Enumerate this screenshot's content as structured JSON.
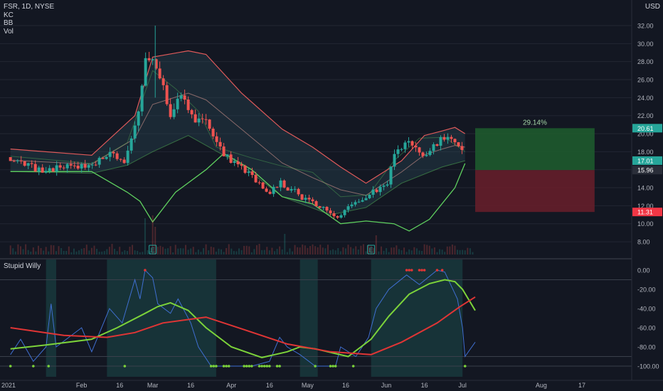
{
  "header": {
    "symbol_line": "FSR, 1D, NYSE",
    "indicators": [
      "KC",
      "BB",
      "Vol"
    ],
    "currency": "USD",
    "oscillator_title": "Stupid Willy"
  },
  "colors": {
    "background": "#131722",
    "grid": "#232733",
    "up": "#26a69a",
    "down": "#ef5350",
    "kc_band": "#e05a5a",
    "bb_band": "#5fd05f",
    "basis": "#8a6a6a",
    "osc_line": "#3f6fd1",
    "fast_ma": "#7cd33a",
    "slow_ma": "#e03535",
    "highlight": "#1c4a4a",
    "target_zone": "#1f5e2e",
    "stop_zone": "#6a1f2a"
  },
  "chart_data": [
    {
      "type": "candlestick",
      "title": "FSR, 1D, NYSE",
      "x_ticks": [
        "2021",
        "Feb",
        "16",
        "Mar",
        "16",
        "Apr",
        "16",
        "May",
        "16",
        "Jun",
        "16",
        "Jul",
        "Aug",
        "17"
      ],
      "y_axis": {
        "ticks": [
          "32.00",
          "30.00",
          "28.00",
          "26.00",
          "24.00",
          "22.00",
          "20.00",
          "18.00",
          "16.00",
          "14.00",
          "12.00",
          "10.00",
          "8.00"
        ],
        "range": [
          7,
          34
        ],
        "side": "right"
      },
      "price_path": [
        [
          "2021-01-04",
          17.4
        ],
        [
          "2021-01-15",
          16.0
        ],
        [
          "2021-01-29",
          16.3
        ],
        [
          "2021-02-05",
          16.2
        ],
        [
          "2021-02-10",
          17.8
        ],
        [
          "2021-02-18",
          17.0
        ],
        [
          "2021-02-24",
          22.5
        ],
        [
          "2021-02-26",
          29.0
        ],
        [
          "2021-03-03",
          27.5
        ],
        [
          "2021-03-08",
          22.0
        ],
        [
          "2021-03-12",
          24.5
        ],
        [
          "2021-03-16",
          22.0
        ],
        [
          "2021-03-23",
          21.0
        ],
        [
          "2021-03-26",
          18.8
        ],
        [
          "2021-04-01",
          17.0
        ],
        [
          "2021-04-09",
          15.3
        ],
        [
          "2021-04-16",
          13.5
        ],
        [
          "2021-04-20",
          14.5
        ],
        [
          "2021-04-26",
          13.6
        ],
        [
          "2021-04-30",
          12.6
        ],
        [
          "2021-05-06",
          12.0
        ],
        [
          "2021-05-12",
          10.5
        ],
        [
          "2021-05-18",
          12.0
        ],
        [
          "2021-05-26",
          13.5
        ],
        [
          "2021-06-01",
          14.0
        ],
        [
          "2021-06-04",
          17.5
        ],
        [
          "2021-06-09",
          19.0
        ],
        [
          "2021-06-15",
          17.5
        ],
        [
          "2021-06-21",
          19.0
        ],
        [
          "2021-06-24",
          19.5
        ],
        [
          "2021-06-30",
          18.8
        ],
        [
          "2021-07-02",
          16.5
        ]
      ],
      "keltner_channel": {
        "upper": [
          [
            "2021-01-04",
            18.3
          ],
          [
            "2021-02-05",
            17.6
          ],
          [
            "2021-02-22",
            22.0
          ],
          [
            "2021-03-01",
            28.5
          ],
          [
            "2021-03-15",
            29.2
          ],
          [
            "2021-03-22",
            28.8
          ],
          [
            "2021-04-05",
            24.5
          ],
          [
            "2021-04-21",
            20.5
          ],
          [
            "2021-05-03",
            18.5
          ],
          [
            "2021-05-14",
            16.3
          ],
          [
            "2021-05-24",
            14.5
          ],
          [
            "2021-06-07",
            17.0
          ],
          [
            "2021-06-16",
            19.8
          ],
          [
            "2021-06-23",
            20.3
          ],
          [
            "2021-06-28",
            20.7
          ],
          [
            "2021-07-02",
            20.0
          ]
        ],
        "lower": [
          [
            "2021-01-04",
            15.8
          ],
          [
            "2021-02-05",
            15.6
          ],
          [
            "2021-02-19",
            16.5
          ],
          [
            "2021-03-01",
            18.0
          ],
          [
            "2021-03-15",
            19.8
          ],
          [
            "2021-04-05",
            16.5
          ],
          [
            "2021-04-21",
            13.0
          ],
          [
            "2021-05-10",
            11.0
          ],
          [
            "2021-05-24",
            11.8
          ],
          [
            "2021-06-07",
            14.5
          ],
          [
            "2021-06-23",
            16.3
          ],
          [
            "2021-07-02",
            17.0
          ]
        ]
      },
      "bollinger_bands": {
        "upper": [
          [
            "2021-01-04",
            17.5
          ],
          [
            "2021-02-05",
            16.7
          ],
          [
            "2021-02-19",
            19.0
          ],
          [
            "2021-03-01",
            27.0
          ],
          [
            "2021-03-10",
            25.0
          ],
          [
            "2021-03-19",
            22.5
          ],
          [
            "2021-03-26",
            18.5
          ],
          [
            "2021-04-09",
            17.3
          ],
          [
            "2021-04-21",
            16.4
          ],
          [
            "2021-05-03",
            15.7
          ],
          [
            "2021-05-14",
            13.0
          ],
          [
            "2021-05-25",
            13.2
          ],
          [
            "2021-06-04",
            17.0
          ],
          [
            "2021-06-14",
            19.5
          ],
          [
            "2021-06-24",
            19.6
          ],
          [
            "2021-07-02",
            18.0
          ]
        ],
        "lower": [
          [
            "2021-01-04",
            15.8
          ],
          [
            "2021-02-05",
            15.8
          ],
          [
            "2021-02-19",
            13.5
          ],
          [
            "2021-02-24",
            12.5
          ],
          [
            "2021-03-01",
            10.2
          ],
          [
            "2021-03-10",
            13.5
          ],
          [
            "2021-03-22",
            16.0
          ],
          [
            "2021-03-29",
            17.8
          ],
          [
            "2021-04-09",
            16.0
          ],
          [
            "2021-04-21",
            13.0
          ],
          [
            "2021-05-03",
            12.2
          ],
          [
            "2021-05-14",
            10.0
          ],
          [
            "2021-05-24",
            10.3
          ],
          [
            "2021-06-04",
            10.0
          ],
          [
            "2021-06-10",
            9.2
          ],
          [
            "2021-06-18",
            10.5
          ],
          [
            "2021-06-28",
            14.0
          ],
          [
            "2021-07-02",
            16.7
          ]
        ]
      },
      "volume_spikes": [
        [
          "2021-02-26",
          0.9
        ],
        [
          "2021-03-01",
          1.0
        ],
        [
          "2021-03-02",
          0.6
        ],
        [
          "2021-04-22",
          0.35
        ],
        [
          "2021-05-28",
          0.3
        ]
      ],
      "event_markers": [
        {
          "date": "2021-03-01",
          "label": "E"
        },
        {
          "date": "2021-05-26",
          "label": "E"
        }
      ],
      "price_tags": [
        {
          "value": "20.61",
          "color": "#26a69a"
        },
        {
          "value": "17.01",
          "color": "#26a69a"
        },
        {
          "value": "15.96",
          "color": "#2a2e39"
        },
        {
          "value": "11.31",
          "color": "#f23645"
        }
      ],
      "position_tool": {
        "start": "2021-07-06",
        "end": "2021-08-22",
        "entry": 15.96,
        "target": 20.61,
        "stop": 11.31,
        "label": "29.14%"
      }
    },
    {
      "type": "line",
      "title": "Stupid Willy",
      "y_axis": {
        "ticks": [
          "0.00",
          "-20.00",
          "-40.00",
          "-60.00",
          "-80.00",
          "-100.00"
        ],
        "range": [
          -105,
          5
        ],
        "guides": [
          -100,
          -90,
          -10
        ]
      },
      "highlight_ranges": [
        [
          "2021-01-18",
          "2021-01-22"
        ],
        [
          "2021-02-11",
          "2021-03-26"
        ],
        [
          "2021-04-28",
          "2021-05-05"
        ],
        [
          "2021-05-26",
          "2021-07-01"
        ]
      ],
      "series": [
        {
          "key": "willr",
          "color": "#3f6fd1",
          "points": [
            [
              "2021-01-04",
              -88
            ],
            [
              "2021-01-08",
              -72
            ],
            [
              "2021-01-13",
              -95
            ],
            [
              "2021-01-18",
              -80
            ],
            [
              "2021-01-20",
              -35
            ],
            [
              "2021-01-22",
              -80
            ],
            [
              "2021-02-01",
              -60
            ],
            [
              "2021-02-05",
              -85
            ],
            [
              "2021-02-12",
              -40
            ],
            [
              "2021-02-17",
              -55
            ],
            [
              "2021-02-22",
              -10
            ],
            [
              "2021-02-24",
              -30
            ],
            [
              "2021-02-26",
              0
            ],
            [
              "2021-03-01",
              -8
            ],
            [
              "2021-03-03",
              -35
            ],
            [
              "2021-03-08",
              -45
            ],
            [
              "2021-03-11",
              -30
            ],
            [
              "2021-03-16",
              -55
            ],
            [
              "2021-03-19",
              -80
            ],
            [
              "2021-03-24",
              -100
            ],
            [
              "2021-04-09",
              -100
            ],
            [
              "2021-04-16",
              -95
            ],
            [
              "2021-04-20",
              -70
            ],
            [
              "2021-04-23",
              -80
            ],
            [
              "2021-04-28",
              -88
            ],
            [
              "2021-05-04",
              -100
            ],
            [
              "2021-05-12",
              -100
            ],
            [
              "2021-05-14",
              -80
            ],
            [
              "2021-05-20",
              -90
            ],
            [
              "2021-05-25",
              -70
            ],
            [
              "2021-05-28",
              -40
            ],
            [
              "2021-06-02",
              -20
            ],
            [
              "2021-06-09",
              -5
            ],
            [
              "2021-06-14",
              -15
            ],
            [
              "2021-06-21",
              0
            ],
            [
              "2021-06-24",
              -2
            ],
            [
              "2021-06-29",
              -30
            ],
            [
              "2021-07-01",
              -60
            ],
            [
              "2021-07-02",
              -90
            ],
            [
              "2021-07-06",
              -75
            ]
          ]
        },
        {
          "key": "fast_ma",
          "color": "#7cd33a",
          "points": [
            [
              "2021-01-04",
              -82
            ],
            [
              "2021-01-18",
              -78
            ],
            [
              "2021-02-05",
              -72
            ],
            [
              "2021-02-15",
              -60
            ],
            [
              "2021-02-26",
              -45
            ],
            [
              "2021-03-03",
              -38
            ],
            [
              "2021-03-08",
              -34
            ],
            [
              "2021-03-15",
              -42
            ],
            [
              "2021-03-22",
              -60
            ],
            [
              "2021-04-01",
              -80
            ],
            [
              "2021-04-13",
              -91
            ],
            [
              "2021-04-23",
              -85
            ],
            [
              "2021-04-28",
              -80
            ],
            [
              "2021-05-04",
              -82
            ],
            [
              "2021-05-17",
              -90
            ],
            [
              "2021-05-26",
              -72
            ],
            [
              "2021-06-02",
              -48
            ],
            [
              "2021-06-10",
              -25
            ],
            [
              "2021-06-18",
              -14
            ],
            [
              "2021-06-24",
              -10
            ],
            [
              "2021-06-28",
              -12
            ],
            [
              "2021-07-01",
              -20
            ],
            [
              "2021-07-06",
              -42
            ]
          ]
        },
        {
          "key": "slow_ma",
          "color": "#e03535",
          "points": [
            [
              "2021-01-04",
              -60
            ],
            [
              "2021-01-25",
              -68
            ],
            [
              "2021-02-11",
              -70
            ],
            [
              "2021-02-22",
              -65
            ],
            [
              "2021-03-05",
              -55
            ],
            [
              "2021-03-22",
              -49
            ],
            [
              "2021-04-06",
              -62
            ],
            [
              "2021-04-23",
              -77
            ],
            [
              "2021-05-10",
              -85
            ],
            [
              "2021-05-26",
              -88
            ],
            [
              "2021-06-07",
              -75
            ],
            [
              "2021-06-21",
              -55
            ],
            [
              "2021-06-30",
              -38
            ],
            [
              "2021-07-06",
              -28
            ]
          ]
        }
      ],
      "top_markers": [
        "2021-02-26",
        "2021-06-09",
        "2021-06-10",
        "2021-06-11",
        "2021-06-14",
        "2021-06-15",
        "2021-06-16",
        "2021-06-21",
        "2021-06-23"
      ],
      "bottom_markers": [
        "2021-01-04",
        "2021-01-13",
        "2021-01-19",
        "2021-02-18",
        "2021-03-24",
        "2021-03-25",
        "2021-03-26",
        "2021-03-29",
        "2021-03-30",
        "2021-03-31",
        "2021-04-06",
        "2021-04-07",
        "2021-04-08",
        "2021-04-09",
        "2021-04-12",
        "2021-04-13",
        "2021-04-14",
        "2021-04-15",
        "2021-04-16",
        "2021-04-19",
        "2021-04-20",
        "2021-05-04",
        "2021-05-10",
        "2021-05-11",
        "2021-05-12",
        "2021-05-19",
        "2021-07-02"
      ]
    }
  ]
}
